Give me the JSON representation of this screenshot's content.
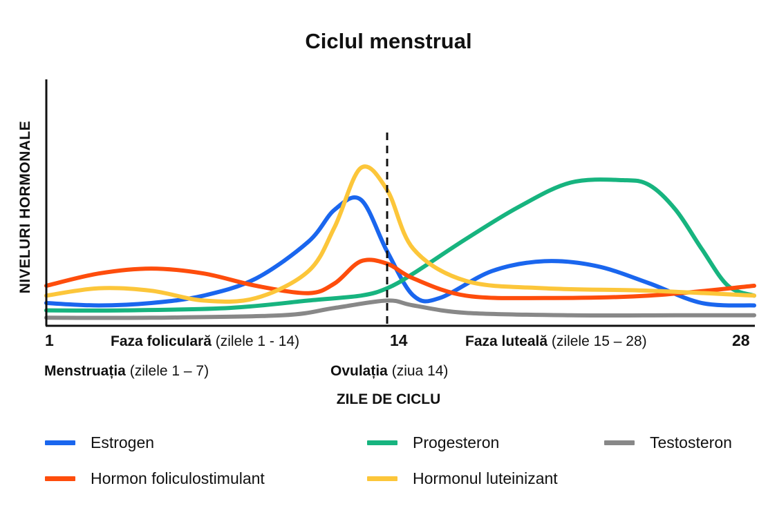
{
  "chart_data": {
    "type": "line",
    "title": "Ciclul menstrual",
    "ylabel": "NIVELURI HORMONALE",
    "xlabel": "ZILE DE CICLU",
    "xlim": [
      1,
      28
    ],
    "ylim": [
      0,
      100
    ],
    "x_ticks": [
      "1",
      "14",
      "28"
    ],
    "marker_line": {
      "x": 14,
      "style": "dashed"
    },
    "phases": [
      {
        "name": "Faza foliculară",
        "range": "(zilele 1 - 14)"
      },
      {
        "name": "Faza luteală",
        "range": "(zilele 15 – 28)"
      }
    ],
    "events": [
      {
        "name": "Menstruația",
        "range": "(zilele 1 – 7)"
      },
      {
        "name": "Ovulația",
        "range": "(ziua 14)"
      }
    ],
    "legend_position": "bottom",
    "series": [
      {
        "name": "Estrogen",
        "color": "#1a66ee",
        "x": [
          1,
          3,
          5,
          7,
          9,
          11,
          12,
          13,
          14,
          15,
          16,
          18,
          20,
          22,
          24,
          26,
          28
        ],
        "y": [
          9,
          8,
          9,
          12,
          19,
          34,
          47,
          51,
          30,
          12,
          11,
          22,
          26,
          24,
          17,
          9,
          8
        ]
      },
      {
        "name": "Progesteron",
        "color": "#17b47f",
        "x": [
          1,
          4,
          8,
          11,
          13,
          14,
          15,
          17,
          19,
          21,
          23,
          24,
          25,
          26,
          27,
          28
        ],
        "y": [
          6,
          6,
          7,
          10,
          12,
          15,
          21,
          35,
          48,
          58,
          59,
          57,
          47,
          31,
          16,
          12
        ]
      },
      {
        "name": "Testosteron",
        "color": "#888888",
        "x": [
          1,
          5,
          10,
          12,
          14,
          15,
          17,
          21,
          25,
          28
        ],
        "y": [
          3,
          3,
          4,
          7,
          10,
          8,
          5,
          4,
          4,
          4
        ]
      },
      {
        "name": "Hormon foliculostimulant",
        "color": "#fe4d0c",
        "x": [
          1,
          3,
          5,
          7,
          9,
          11,
          12,
          13,
          14,
          15,
          17,
          20,
          24,
          28
        ],
        "y": [
          16,
          21,
          23,
          21,
          16,
          13,
          17,
          26,
          25,
          19,
          12,
          11,
          12,
          16
        ]
      },
      {
        "name": "Hormonul luteinizant",
        "color": "#fcc63a",
        "x": [
          1,
          3,
          5,
          7,
          9,
          11,
          12,
          13,
          14,
          15,
          17,
          20,
          24,
          28
        ],
        "y": [
          12,
          15,
          14,
          10,
          11,
          22,
          40,
          64,
          55,
          31,
          18,
          15,
          14,
          12
        ]
      }
    ]
  },
  "legend": [
    {
      "label": "Estrogen",
      "color": "#1a66ee"
    },
    {
      "label": "Progesteron",
      "color": "#17b47f"
    },
    {
      "label": "Testosteron",
      "color": "#888888"
    },
    {
      "label": "Hormon foliculostimulant",
      "color": "#fe4d0c"
    },
    {
      "label": "Hormonul luteinizant",
      "color": "#fcc63a"
    }
  ]
}
